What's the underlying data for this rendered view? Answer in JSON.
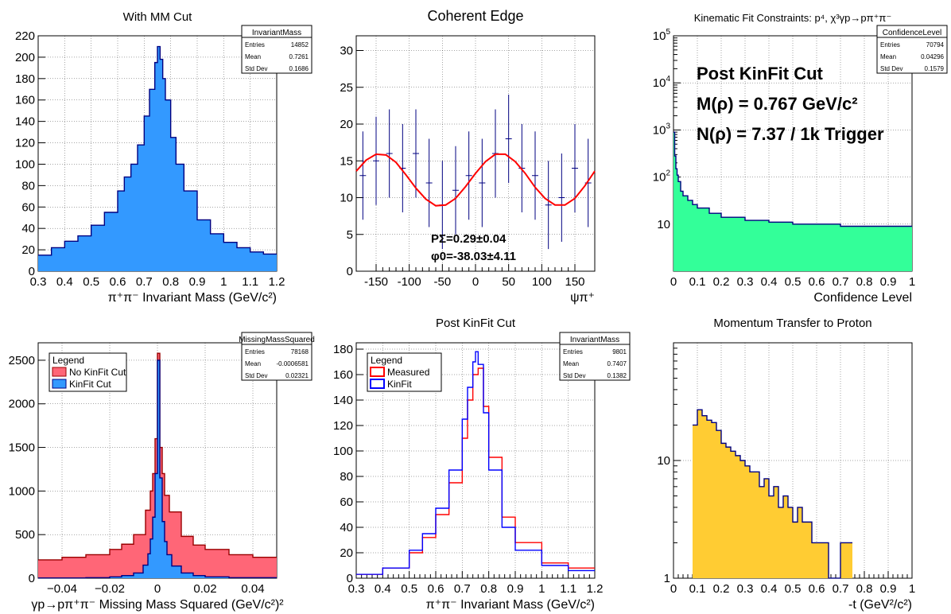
{
  "panels": [
    {
      "id": "with-mm-cut",
      "title": "With MM Cut",
      "xlabel": "π⁺π⁻ Invariant Mass (GeV/c²)",
      "stats": {
        "name": "InvariantMass",
        "rows": [
          [
            "Entries",
            "14852"
          ],
          [
            "Mean",
            "0.7261"
          ],
          [
            "Std Dev",
            "0.1686"
          ]
        ]
      }
    },
    {
      "id": "coherent-edge",
      "title": "Coherent Edge",
      "xlabel": "ψπ⁺",
      "fit_text": [
        "PΣ=0.29±0.04",
        "φ0=-38.03±4.11"
      ]
    },
    {
      "id": "kinematic-fit-constraints",
      "title": "Kinematic Fit Constraints: p⁴, χ³γp→pπ⁺π⁻",
      "xlabel": "Confidence Level",
      "stats": {
        "name": "ConfidenceLevel",
        "rows": [
          [
            "Entries",
            "70794"
          ],
          [
            "Mean",
            "0.04296"
          ],
          [
            "Std Dev",
            "0.1579"
          ]
        ]
      },
      "annotations": [
        "Post KinFit Cut",
        "M(ρ) = 0.767 GeV/c²",
        "N(ρ) = 7.37 / 1k Trigger"
      ]
    },
    {
      "id": "missing-mass-squared",
      "title": "",
      "xlabel": "γp→pπ⁺π⁻ Missing Mass Squared (GeV/c²)²",
      "stats": {
        "name": "MissingMassSquared",
        "rows": [
          [
            "Entries",
            "78168"
          ],
          [
            "Mean",
            "-0.0006581"
          ],
          [
            "Std Dev",
            "0.02321"
          ]
        ]
      },
      "legend": {
        "title": "Legend",
        "items": [
          "No KinFit Cut",
          "KinFit Cut"
        ]
      }
    },
    {
      "id": "post-kinfit-cut",
      "title": "Post KinFit Cut",
      "xlabel": "π⁺π⁻ Invariant Mass (GeV/c²)",
      "stats": {
        "name": "InvariantMass",
        "rows": [
          [
            "Entries",
            "9801"
          ],
          [
            "Mean",
            "0.7407"
          ],
          [
            "Std Dev",
            "0.1382"
          ]
        ]
      },
      "legend": {
        "title": "Legend",
        "items": [
          "Measured",
          "KinFit"
        ]
      }
    },
    {
      "id": "momentum-transfer",
      "title": "Momentum Transfer to Proton",
      "xlabel": "-t (GeV²/c²)"
    }
  ],
  "chart_data": [
    {
      "type": "histogram",
      "title": "With MM Cut",
      "xlabel": "π⁺π⁻ Invariant Mass (GeV/c²)",
      "ylabel": "",
      "xlim": [
        0.3,
        1.2
      ],
      "ylim": [
        0,
        220
      ],
      "xticks": [
        0.3,
        0.4,
        0.5,
        0.6,
        0.7,
        0.8,
        0.9,
        1.0,
        1.1,
        1.2
      ],
      "xticklabels": [
        "0.3",
        "0.4",
        "0.5",
        "0.6",
        "0.7",
        "0.8",
        "0.9",
        "1",
        "1.1",
        "1.2"
      ],
      "yticks": [
        0,
        20,
        40,
        60,
        80,
        100,
        120,
        140,
        160,
        180,
        200,
        220
      ],
      "fill": "#3399ff",
      "line": "#000080",
      "grid": true,
      "x": [
        0.3,
        0.35,
        0.4,
        0.45,
        0.5,
        0.55,
        0.6,
        0.625,
        0.65,
        0.675,
        0.7,
        0.72,
        0.74,
        0.75,
        0.76,
        0.77,
        0.78,
        0.8,
        0.82,
        0.85,
        0.9,
        0.95,
        1.0,
        1.05,
        1.1,
        1.15,
        1.2
      ],
      "y": [
        15,
        22,
        28,
        33,
        43,
        55,
        75,
        88,
        100,
        118,
        145,
        170,
        195,
        210,
        198,
        180,
        160,
        125,
        100,
        75,
        48,
        35,
        27,
        22,
        18,
        16,
        14
      ]
    },
    {
      "type": "scatter",
      "title": "Coherent Edge",
      "xlabel": "ψπ⁺",
      "ylabel": "",
      "xlim": [
        -180,
        180
      ],
      "ylim": [
        0,
        32
      ],
      "xticks": [
        -150,
        -100,
        -50,
        0,
        50,
        100,
        150
      ],
      "yticks": [
        0,
        5,
        10,
        15,
        20,
        25,
        30
      ],
      "points": {
        "color": "#000080",
        "x": [
          -170,
          -150,
          -130,
          -110,
          -90,
          -70,
          -50,
          -30,
          -10,
          10,
          30,
          50,
          70,
          90,
          110,
          130,
          150,
          170
        ],
        "y": [
          13,
          15,
          16,
          14,
          16,
          12,
          9,
          11,
          13,
          12,
          16,
          18,
          14,
          13,
          9,
          10,
          14,
          12
        ],
        "yerr": 6
      },
      "fit": {
        "color": "#ff0000",
        "x": [
          -180,
          -165,
          -150,
          -135,
          -120,
          -105,
          -90,
          -75,
          -60,
          -45,
          -30,
          -15,
          0,
          15,
          30,
          45,
          60,
          75,
          90,
          105,
          120,
          135,
          150,
          165,
          180
        ],
        "y": [
          13.6,
          15.1,
          15.9,
          15.8,
          14.8,
          13.1,
          11.3,
          9.8,
          8.9,
          9.0,
          9.9,
          11.5,
          13.3,
          14.9,
          15.9,
          15.9,
          14.9,
          13.3,
          11.4,
          9.9,
          9.0,
          9.0,
          9.9,
          11.6,
          13.6
        ]
      }
    },
    {
      "type": "histogram",
      "title": "Kinematic Fit Constraints: p⁴, χ³γp→pπ⁺π⁻",
      "xlabel": "Confidence Level",
      "ylabel": "",
      "xlim": [
        0,
        1
      ],
      "ylim": [
        1,
        100000
      ],
      "yscale": "log",
      "xticks": [
        0,
        0.1,
        0.2,
        0.3,
        0.4,
        0.5,
        0.6,
        0.7,
        0.8,
        0.9,
        1.0
      ],
      "xticklabels": [
        "0",
        "0.1",
        "0.2",
        "0.3",
        "0.4",
        "0.5",
        "0.6",
        "0.7",
        "0.8",
        "0.9",
        "1"
      ],
      "yticks": [
        10,
        100,
        1000,
        10000,
        100000
      ],
      "yticklabels": [
        "10",
        "10²",
        "10³",
        "10⁴",
        "10⁵"
      ],
      "fill": "#33ff99",
      "line": "#000080",
      "grid": true,
      "x": [
        0,
        0.005,
        0.01,
        0.015,
        0.02,
        0.03,
        0.04,
        0.06,
        0.08,
        0.1,
        0.15,
        0.2,
        0.3,
        0.4,
        0.5,
        0.6,
        0.7,
        0.8,
        0.9,
        1.0
      ],
      "y": [
        900,
        280,
        150,
        110,
        80,
        50,
        40,
        32,
        26,
        22,
        17,
        14,
        12,
        11,
        10,
        10,
        9,
        9,
        9,
        9
      ]
    },
    {
      "type": "histogram",
      "title": "",
      "xlabel": "γp→pπ⁺π⁻ Missing Mass Squared (GeV/c²)²",
      "ylabel": "",
      "xlim": [
        -0.05,
        0.05
      ],
      "ylim": [
        0,
        2700
      ],
      "xticks": [
        -0.04,
        -0.02,
        0,
        0.02,
        0.04
      ],
      "xticklabels": [
        "−0.04",
        "−0.02",
        "0",
        "0.02",
        "0.04"
      ],
      "yticks": [
        0,
        500,
        1000,
        1500,
        2000,
        2500
      ],
      "grid": true,
      "series": [
        {
          "name": "No KinFit Cut",
          "fill": "#ff6677",
          "line": "#990000",
          "x": [
            -0.05,
            -0.04,
            -0.03,
            -0.02,
            -0.015,
            -0.01,
            -0.005,
            -0.003,
            -0.002,
            -0.001,
            0,
            0.001,
            0.002,
            0.003,
            0.005,
            0.01,
            0.015,
            0.02,
            0.03,
            0.04,
            0.05
          ],
          "y": [
            210,
            240,
            270,
            330,
            390,
            500,
            780,
            1000,
            1200,
            1600,
            2580,
            1500,
            1200,
            950,
            760,
            480,
            380,
            330,
            270,
            240,
            210
          ]
        },
        {
          "name": "KinFit Cut",
          "fill": "#3399ff",
          "line": "#000080",
          "x": [
            -0.05,
            -0.03,
            -0.02,
            -0.015,
            -0.01,
            -0.006,
            -0.004,
            -0.003,
            -0.002,
            -0.001,
            0,
            0.001,
            0.002,
            0.003,
            0.004,
            0.006,
            0.01,
            0.015,
            0.02,
            0.03,
            0.05
          ],
          "y": [
            3,
            6,
            15,
            30,
            60,
            150,
            280,
            450,
            700,
            1200,
            2500,
            1150,
            650,
            420,
            270,
            140,
            60,
            30,
            15,
            6,
            3
          ]
        }
      ]
    },
    {
      "type": "histogram",
      "title": "Post KinFit Cut",
      "xlabel": "π⁺π⁻ Invariant Mass (GeV/c²)",
      "ylabel": "",
      "xlim": [
        0.3,
        1.2
      ],
      "ylim": [
        0,
        185
      ],
      "xticks": [
        0.3,
        0.4,
        0.5,
        0.6,
        0.7,
        0.8,
        0.9,
        1.0,
        1.1,
        1.2
      ],
      "xticklabels": [
        "0.3",
        "0.4",
        "0.5",
        "0.6",
        "0.7",
        "0.8",
        "0.9",
        "1",
        "1.1",
        "1.2"
      ],
      "yticks": [
        0,
        20,
        40,
        60,
        80,
        100,
        120,
        140,
        160,
        180
      ],
      "grid": true,
      "series": [
        {
          "name": "Measured",
          "line": "#ff0000",
          "x": [
            0.3,
            0.4,
            0.5,
            0.55,
            0.6,
            0.65,
            0.7,
            0.72,
            0.74,
            0.76,
            0.78,
            0.8,
            0.85,
            0.9,
            1.0,
            1.1,
            1.2
          ],
          "y": [
            3,
            8,
            20,
            32,
            50,
            75,
            110,
            140,
            160,
            165,
            135,
            95,
            48,
            28,
            12,
            8,
            4
          ]
        },
        {
          "name": "KinFit",
          "line": "#0000ff",
          "x": [
            0.3,
            0.4,
            0.5,
            0.55,
            0.6,
            0.65,
            0.7,
            0.72,
            0.74,
            0.75,
            0.76,
            0.78,
            0.8,
            0.85,
            0.9,
            1.0,
            1.1,
            1.2
          ],
          "y": [
            3,
            8,
            22,
            35,
            55,
            85,
            125,
            150,
            170,
            178,
            168,
            130,
            85,
            40,
            22,
            10,
            6,
            3
          ]
        }
      ]
    },
    {
      "type": "histogram",
      "title": "Momentum Transfer to Proton",
      "xlabel": "-t (GeV²/c²)",
      "ylabel": "",
      "xlim": [
        0,
        1
      ],
      "ylim": [
        1,
        100
      ],
      "yscale": "log",
      "xticks": [
        0,
        0.1,
        0.2,
        0.3,
        0.4,
        0.5,
        0.6,
        0.7,
        0.8,
        0.9,
        1.0
      ],
      "xticklabels": [
        "0",
        "0.1",
        "0.2",
        "0.3",
        "0.4",
        "0.5",
        "0.6",
        "0.7",
        "0.8",
        "0.9",
        "1"
      ],
      "yticks": [
        1,
        10
      ],
      "yticklabels": [
        "1",
        "10"
      ],
      "fill": "#ffcc33",
      "line": "#000080",
      "grid": true,
      "x": [
        0.08,
        0.1,
        0.12,
        0.14,
        0.16,
        0.18,
        0.2,
        0.22,
        0.24,
        0.26,
        0.28,
        0.3,
        0.32,
        0.34,
        0.36,
        0.38,
        0.4,
        0.42,
        0.44,
        0.46,
        0.48,
        0.5,
        0.52,
        0.54,
        0.56,
        0.58,
        0.6,
        0.65,
        0.7,
        0.75
      ],
      "y": [
        20,
        27,
        24,
        22,
        21,
        18,
        14,
        13,
        12,
        11,
        10,
        9,
        8,
        8,
        6,
        7,
        5,
        6,
        4,
        5,
        4,
        3,
        4,
        3,
        3,
        2,
        2,
        1,
        2,
        1
      ]
    }
  ]
}
